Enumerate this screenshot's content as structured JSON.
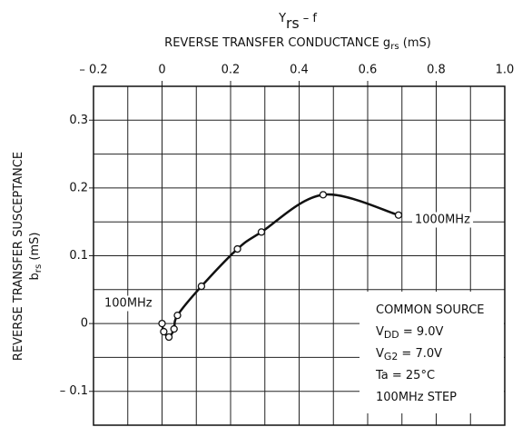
{
  "chart_data": {
    "type": "line",
    "title": [
      "Y",
      "rs",
      " – f"
    ],
    "x_label": [
      "REVERSE TRANSFER CONDUCTANCE  g",
      "rs",
      "  (mS)"
    ],
    "y_label": [
      "REVERSE TRANSFER SUSCEPTANCE"
    ],
    "y_label_2": [
      "b",
      "rs",
      "  (mS)"
    ],
    "xlim": [
      -0.2,
      1.0
    ],
    "ylim": [
      -0.15,
      0.35
    ],
    "xticks": [
      {
        "value": -0.2,
        "label": "– 0.2"
      },
      0,
      0.2,
      0.4,
      0.6,
      0.8,
      {
        "value": 1.0,
        "label": "1.0"
      }
    ],
    "yticks": [
      {
        "value": -0.1,
        "label": "– 0.1"
      },
      0,
      0.1,
      0.2,
      0.3
    ],
    "x_minor_grid": [
      -0.1,
      0.1,
      0.3,
      0.5,
      0.7,
      0.9
    ],
    "y_minor_grid": [
      -0.05,
      0.05,
      0.15,
      0.25
    ],
    "grid": true,
    "color": "#111111",
    "series": [
      {
        "x": [
          0.0,
          0.005,
          0.02,
          0.035,
          0.045,
          0.115,
          0.22,
          0.29,
          0.47,
          0.69
        ],
        "values": [
          0.0,
          -0.012,
          -0.02,
          -0.008,
          0.012,
          0.055,
          0.11,
          0.135,
          0.19,
          0.16
        ]
      }
    ],
    "annotations": [
      "100MHz",
      "1000MHz"
    ],
    "conditions": [
      [
        "COMMON SOURCE"
      ],
      [
        "V",
        "DD",
        " = 9.0V"
      ],
      [
        "V",
        "G2",
        " = 7.0V"
      ],
      [
        "Ta = 25°C"
      ],
      [
        "100MHz STEP"
      ]
    ]
  }
}
